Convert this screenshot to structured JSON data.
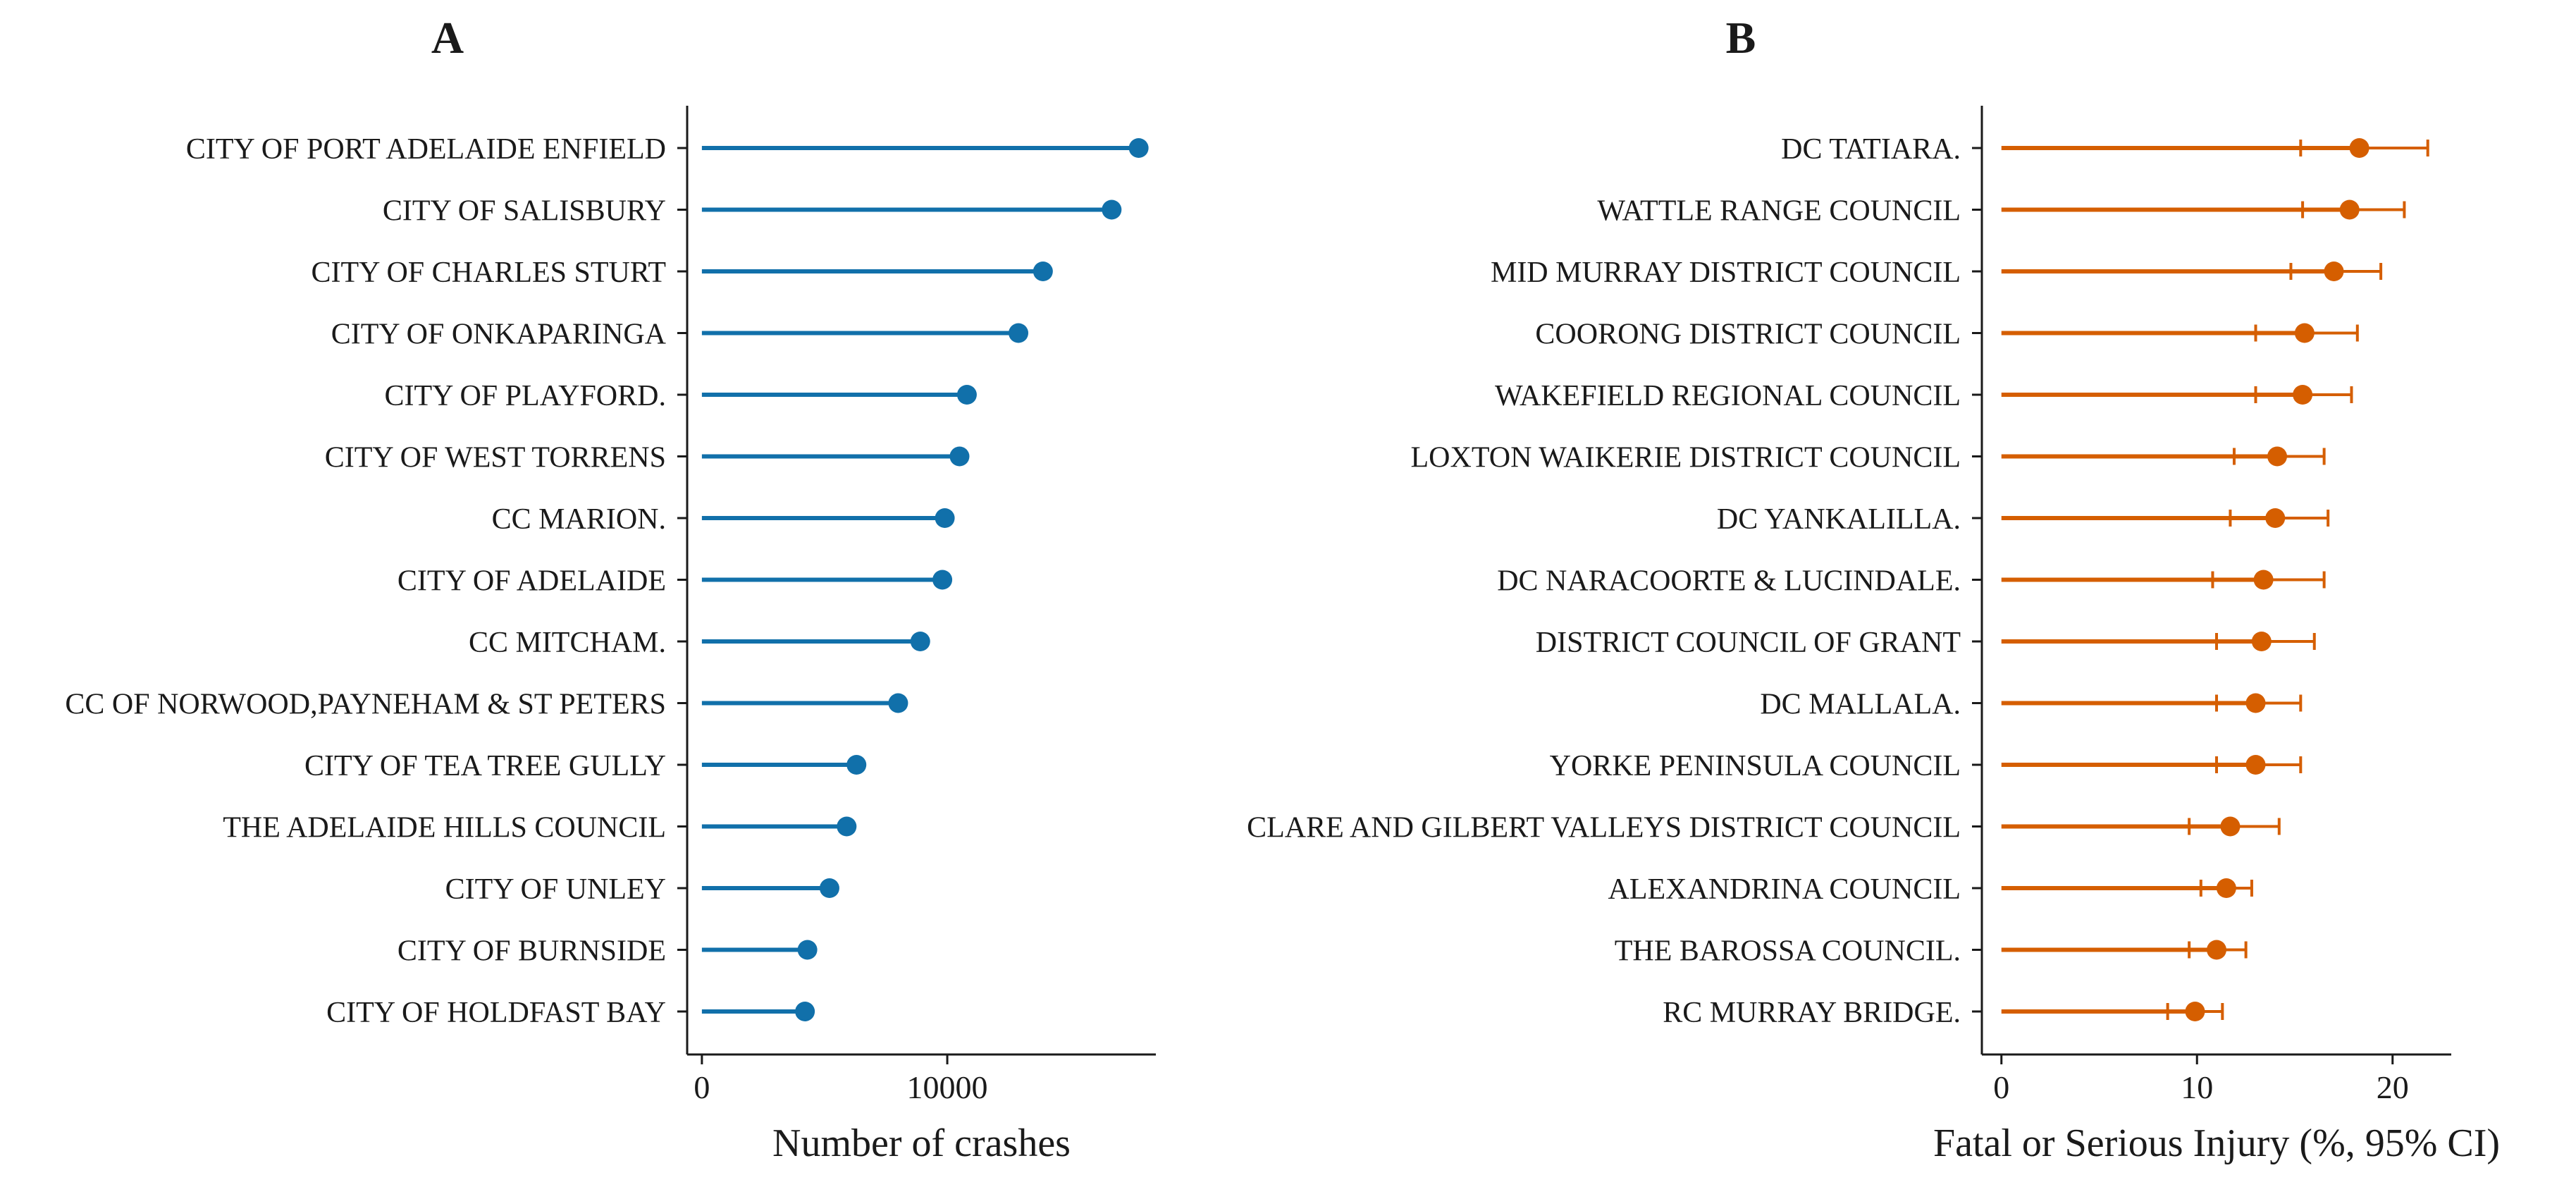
{
  "colors": {
    "panel_a": "#1170aa",
    "panel_b": "#d55e00",
    "axis": "#1a1a1a"
  },
  "chart_data": [
    {
      "type": "lollipop",
      "panel_label": "A",
      "xlabel": "Number of crashes",
      "xlim": [
        -600,
        18500
      ],
      "xticks": [
        0,
        10000
      ],
      "xtick_labels": [
        "0",
        "10000"
      ],
      "grid": false,
      "categories": [
        "CITY OF PORT ADELAIDE ENFIELD",
        "CITY OF SALISBURY",
        "CITY OF CHARLES STURT",
        "CITY OF ONKAPARINGA",
        "CITY OF PLAYFORD.",
        "CITY OF WEST TORRENS",
        "CC MARION.",
        "CITY OF ADELAIDE",
        "CC MITCHAM.",
        "CC OF NORWOOD,PAYNEHAM & ST PETERS",
        "CITY OF TEA TREE GULLY",
        "THE ADELAIDE HILLS COUNCIL",
        "CITY OF UNLEY",
        "CITY OF BURNSIDE",
        "CITY OF HOLDFAST BAY"
      ],
      "values": [
        17800,
        16700,
        13900,
        12900,
        10800,
        10500,
        9900,
        9800,
        8900,
        8000,
        6300,
        5900,
        5200,
        4300,
        4200
      ]
    },
    {
      "type": "forest",
      "panel_label": "B",
      "xlabel": "Fatal or Serious Injury (%, 95% CI)",
      "xlim": [
        -1,
        23
      ],
      "xticks": [
        0,
        10,
        20
      ],
      "xtick_labels": [
        "0",
        "10",
        "20"
      ],
      "grid": false,
      "categories": [
        "DC TATIARA.",
        "WATTLE RANGE COUNCIL",
        "MID MURRAY DISTRICT COUNCIL",
        "COORONG DISTRICT COUNCIL",
        "WAKEFIELD REGIONAL COUNCIL",
        "LOXTON WAIKERIE DISTRICT COUNCIL",
        "DC YANKALILLA.",
        "DC NARACOORTE & LUCINDALE.",
        "DISTRICT COUNCIL OF GRANT",
        "DC MALLALA.",
        "YORKE PENINSULA COUNCIL",
        "CLARE AND GILBERT VALLEYS DISTRICT COUNCIL",
        "ALEXANDRINA COUNCIL",
        "THE BAROSSA COUNCIL.",
        "RC MURRAY BRIDGE."
      ],
      "values": [
        18.3,
        17.8,
        17.0,
        15.5,
        15.4,
        14.1,
        14.0,
        13.4,
        13.3,
        13.0,
        13.0,
        11.7,
        11.5,
        11.0,
        9.9
      ],
      "ci_low": [
        15.3,
        15.4,
        14.8,
        13.0,
        13.0,
        11.9,
        11.7,
        10.8,
        11.0,
        11.0,
        11.0,
        9.6,
        10.2,
        9.6,
        8.5
      ],
      "ci_high": [
        21.8,
        20.6,
        19.4,
        18.2,
        17.9,
        16.5,
        16.7,
        16.5,
        16.0,
        15.3,
        15.3,
        14.2,
        12.8,
        12.5,
        11.3
      ]
    }
  ]
}
